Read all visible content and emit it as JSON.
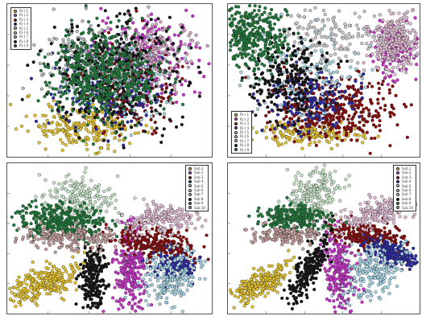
{
  "chart_data": [
    {
      "type": "scatter",
      "title": "",
      "xlabel": "",
      "ylabel": "",
      "grid": false,
      "legend_position": "top-left",
      "series": [
        {
          "name": "R(·) 1",
          "color": "#e8c62a",
          "cx": 0.38,
          "cy": 0.8,
          "sx": 0.14,
          "sy": 0.07,
          "n": 260
        },
        {
          "name": "R(·) 2",
          "color": "#cc33cc",
          "cx": 0.68,
          "cy": 0.35,
          "sx": 0.12,
          "sy": 0.14,
          "n": 240
        },
        {
          "name": "R(·) 3",
          "color": "#8b0a0a",
          "cx": 0.6,
          "cy": 0.55,
          "sx": 0.12,
          "sy": 0.15,
          "n": 260
        },
        {
          "name": "R(·) 4",
          "color": "#2a2aa8",
          "cx": 0.5,
          "cy": 0.55,
          "sx": 0.12,
          "sy": 0.14,
          "n": 200
        },
        {
          "name": "R(·) 5",
          "color": "#d8a8c8",
          "cx": 0.72,
          "cy": 0.32,
          "sx": 0.1,
          "sy": 0.1,
          "n": 180
        },
        {
          "name": "R(·) 6",
          "color": "#a8d8e8",
          "cx": 0.55,
          "cy": 0.5,
          "sx": 0.14,
          "sy": 0.14,
          "n": 180
        },
        {
          "name": "R(·) 7",
          "color": "#bbbbbb",
          "cx": 0.4,
          "cy": 0.35,
          "sx": 0.12,
          "sy": 0.12,
          "n": 160
        },
        {
          "name": "R(·) 8",
          "color": "#111111",
          "cx": 0.52,
          "cy": 0.45,
          "sx": 0.17,
          "sy": 0.19,
          "n": 340
        },
        {
          "name": "R(·) 9",
          "color": "#1f7a3a",
          "cx": 0.46,
          "cy": 0.46,
          "sx": 0.13,
          "sy": 0.14,
          "n": 520
        }
      ]
    },
    {
      "type": "scatter",
      "title": "",
      "xlabel": "",
      "ylabel": "",
      "grid": false,
      "legend_position": "bottom-left",
      "series": [
        {
          "name": "R(·) 1",
          "color": "#e8c62a",
          "cx": 0.45,
          "cy": 0.84,
          "sx": 0.14,
          "sy": 0.04,
          "n": 180
        },
        {
          "name": "R(·) 2",
          "color": "#cc33cc",
          "cx": 0.88,
          "cy": 0.3,
          "sx": 0.06,
          "sy": 0.1,
          "n": 140
        },
        {
          "name": "R(·) 3",
          "color": "#8b0a0a",
          "cx": 0.55,
          "cy": 0.68,
          "sx": 0.16,
          "sy": 0.1,
          "n": 420
        },
        {
          "name": "R(·) 4",
          "color": "#2a2aa8",
          "cx": 0.4,
          "cy": 0.62,
          "sx": 0.12,
          "sy": 0.1,
          "n": 180
        },
        {
          "name": "R(·) 5",
          "color": "#e6c0d8",
          "cx": 0.87,
          "cy": 0.24,
          "sx": 0.07,
          "sy": 0.09,
          "n": 320
        },
        {
          "name": "R(·) 6",
          "color": "#a8d8e8",
          "cx": 0.4,
          "cy": 0.45,
          "sx": 0.14,
          "sy": 0.15,
          "n": 160
        },
        {
          "name": "R(·) 7",
          "color": "#cccccc",
          "cx": 0.5,
          "cy": 0.2,
          "sx": 0.16,
          "sy": 0.1,
          "n": 140
        },
        {
          "name": "R(·) 8",
          "color": "#111111",
          "cx": 0.32,
          "cy": 0.48,
          "sx": 0.11,
          "sy": 0.14,
          "n": 240
        },
        {
          "name": "R(·) 9",
          "color": "#1f7a3a",
          "cx": 0.12,
          "cy": 0.2,
          "sx": 0.09,
          "sy": 0.11,
          "n": 380
        }
      ]
    },
    {
      "type": "scatter",
      "title": "",
      "xlabel": "",
      "ylabel": "",
      "grid": false,
      "legend_position": "top-right",
      "series": [
        {
          "name": "Sub 1",
          "color": "#e8c62a",
          "cx": 0.17,
          "cy": 0.8,
          "sx": 0.1,
          "sy": 0.05,
          "n": 260,
          "rot": -35
        },
        {
          "name": "Sub 2",
          "color": "#cc33cc",
          "cx": 0.6,
          "cy": 0.72,
          "sx": 0.04,
          "sy": 0.15,
          "n": 260,
          "rot": 0
        },
        {
          "name": "Sub 3",
          "color": "#8b0a0a",
          "cx": 0.72,
          "cy": 0.53,
          "sx": 0.12,
          "sy": 0.05,
          "n": 280,
          "rot": 12
        },
        {
          "name": "Sub 4",
          "color": "#2a2aa8",
          "cx": 0.82,
          "cy": 0.68,
          "sx": 0.06,
          "sy": 0.05,
          "n": 120,
          "rot": 0
        },
        {
          "name": "Sub 5",
          "color": "#e6c0d8",
          "cx": 0.76,
          "cy": 0.37,
          "sx": 0.1,
          "sy": 0.05,
          "n": 200,
          "rot": -10
        },
        {
          "name": "Sub 6",
          "color": "#a8d8e8",
          "cx": 0.8,
          "cy": 0.76,
          "sx": 0.07,
          "sy": 0.1,
          "n": 200,
          "rot": 30
        },
        {
          "name": "Sub 7",
          "color": "#c8e8c8",
          "cx": 0.35,
          "cy": 0.24,
          "sx": 0.09,
          "sy": 0.08,
          "n": 200,
          "rot": 25
        },
        {
          "name": "Sub 8",
          "color": "#111111",
          "cx": 0.42,
          "cy": 0.77,
          "sx": 0.03,
          "sy": 0.12,
          "n": 220,
          "rot": 0
        },
        {
          "name": "Sub 9",
          "color": "#1f7a3a",
          "cx": 0.26,
          "cy": 0.38,
          "sx": 0.11,
          "sy": 0.06,
          "n": 360,
          "rot": 5
        },
        {
          "name": "Sub 10",
          "color": "#c8a0a0",
          "cx": 0.3,
          "cy": 0.5,
          "sx": 0.12,
          "sy": 0.04,
          "n": 180,
          "rot": 0
        }
      ]
    },
    {
      "type": "scatter",
      "title": "",
      "xlabel": "",
      "ylabel": "",
      "grid": false,
      "legend_position": "top-right",
      "series": [
        {
          "name": "Sub 1",
          "color": "#e8c62a",
          "cx": 0.17,
          "cy": 0.8,
          "sx": 0.1,
          "sy": 0.04,
          "n": 240,
          "rot": -35
        },
        {
          "name": "Sub 2",
          "color": "#cc33cc",
          "cx": 0.58,
          "cy": 0.72,
          "sx": 0.04,
          "sy": 0.15,
          "n": 240,
          "rot": -5
        },
        {
          "name": "Sub 3",
          "color": "#8b0a0a",
          "cx": 0.74,
          "cy": 0.48,
          "sx": 0.1,
          "sy": 0.04,
          "n": 240,
          "rot": 12
        },
        {
          "name": "Sub 4",
          "color": "#2a2aa8",
          "cx": 0.86,
          "cy": 0.6,
          "sx": 0.08,
          "sy": 0.04,
          "n": 200,
          "rot": 25
        },
        {
          "name": "Sub 5",
          "color": "#e6c0d8",
          "cx": 0.78,
          "cy": 0.33,
          "sx": 0.12,
          "sy": 0.04,
          "n": 220,
          "rot": -22
        },
        {
          "name": "Sub 6",
          "color": "#a8d8e8",
          "cx": 0.76,
          "cy": 0.72,
          "sx": 0.07,
          "sy": 0.1,
          "n": 200,
          "rot": 30
        },
        {
          "name": "Sub 7",
          "color": "#c8e8c8",
          "cx": 0.45,
          "cy": 0.2,
          "sx": 0.07,
          "sy": 0.1,
          "n": 220,
          "rot": 20
        },
        {
          "name": "Sub 8",
          "color": "#111111",
          "cx": 0.42,
          "cy": 0.7,
          "sx": 0.03,
          "sy": 0.13,
          "n": 220,
          "rot": 22
        },
        {
          "name": "Sub 9",
          "color": "#1f7a3a",
          "cx": 0.33,
          "cy": 0.36,
          "sx": 0.09,
          "sy": 0.04,
          "n": 280,
          "rot": 0
        },
        {
          "name": "Sub 10",
          "color": "#c8a0a0",
          "cx": 0.3,
          "cy": 0.48,
          "sx": 0.1,
          "sy": 0.03,
          "n": 160,
          "rot": 0
        }
      ]
    }
  ]
}
